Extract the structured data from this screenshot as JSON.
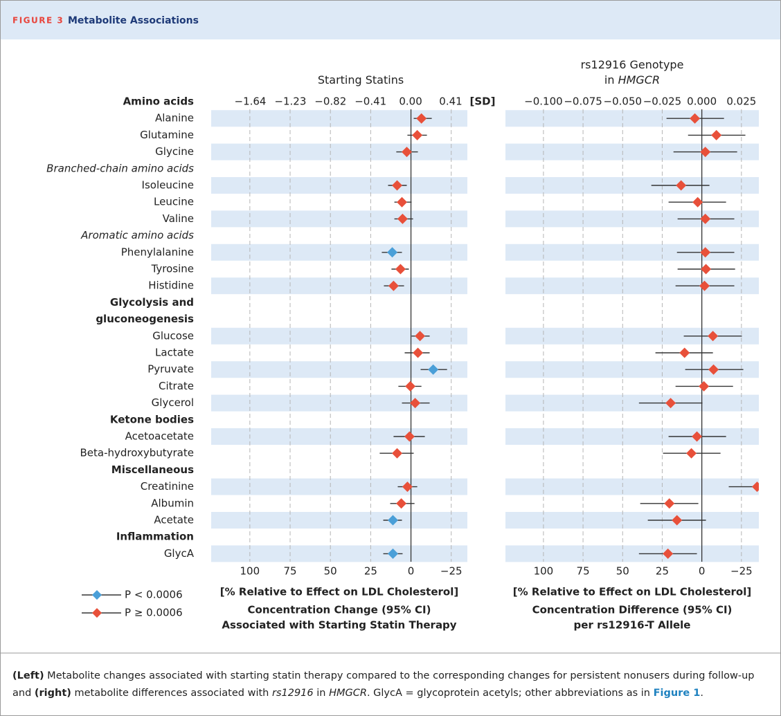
{
  "figure": {
    "label": "FIGURE 3",
    "title": "Metabolite Associations"
  },
  "rows": [
    {
      "label": "Amino acids",
      "style": "bold"
    },
    {
      "label": "Alanine",
      "style": "plain"
    },
    {
      "label": "Glutamine",
      "style": "plain"
    },
    {
      "label": "Glycine",
      "style": "plain"
    },
    {
      "label": "Branched-chain amino acids",
      "style": "italic"
    },
    {
      "label": "Isoleucine",
      "style": "plain"
    },
    {
      "label": "Leucine",
      "style": "plain"
    },
    {
      "label": "Valine",
      "style": "plain"
    },
    {
      "label": "Aromatic amino acids",
      "style": "italic"
    },
    {
      "label": "Phenylalanine",
      "style": "plain"
    },
    {
      "label": "Tyrosine",
      "style": "plain"
    },
    {
      "label": "Histidine",
      "style": "plain"
    },
    {
      "label": "Glycolysis and",
      "style": "bold"
    },
    {
      "label": "gluconeogenesis",
      "style": "bold"
    },
    {
      "label": "Glucose",
      "style": "plain"
    },
    {
      "label": "Lactate",
      "style": "plain"
    },
    {
      "label": "Pyruvate",
      "style": "plain"
    },
    {
      "label": "Citrate",
      "style": "plain"
    },
    {
      "label": "Glycerol",
      "style": "plain"
    },
    {
      "label": "Ketone bodies",
      "style": "bold"
    },
    {
      "label": "Acetoacetate",
      "style": "plain"
    },
    {
      "label": "Beta-hydroxybutyrate",
      "style": "plain"
    },
    {
      "label": "Miscellaneous",
      "style": "bold"
    },
    {
      "label": "Creatinine",
      "style": "plain"
    },
    {
      "label": "Albumin",
      "style": "plain"
    },
    {
      "label": "Acetate",
      "style": "plain"
    },
    {
      "label": "Inflammation",
      "style": "bold"
    },
    {
      "label": "GlycA",
      "style": "plain"
    }
  ],
  "chart_data": [
    {
      "type": "forest",
      "title": [
        [
          {
            "text": "Starting Statins"
          }
        ]
      ],
      "x2label": "[SD]",
      "xlabel": "[% Relative to Effect on LDL Cholesterol]",
      "xlabel_lines": [
        "Concentration Change (95% CI)",
        "Associated with Starting Statin Therapy"
      ],
      "xlim": [
        124,
        -35
      ],
      "xticks": [
        100,
        75,
        50,
        25,
        0,
        {
          "value": -25,
          "label": "−25"
        }
      ],
      "x2lim": [
        -2.04,
        0.58
      ],
      "x2ticks": [
        {
          "value": -1.64,
          "label": "−1.64"
        },
        {
          "value": -1.23,
          "label": "−1.23"
        },
        {
          "value": -0.82,
          "label": "−0.82"
        },
        {
          "value": -0.41,
          "label": "−0.41"
        },
        {
          "value": 0,
          "label": "0.00"
        },
        0.41
      ],
      "grid": true,
      "series": [
        {
          "name": "P < 0.0006",
          "color": "#4a9fd8",
          "values": [
            null,
            null,
            null,
            null,
            null,
            null,
            null,
            null,
            null,
            11.6,
            null,
            null,
            null,
            null,
            null,
            null,
            -13.8,
            null,
            null,
            null,
            null,
            null,
            null,
            null,
            null,
            11.2,
            null,
            11.2
          ]
        },
        {
          "name": "P ≥ 0.0006",
          "color": "#e8503a",
          "values": [
            null,
            -6.5,
            -3.9,
            2.6,
            null,
            8.6,
            5.6,
            5.2,
            null,
            null,
            6.5,
            10.8,
            null,
            null,
            -5.6,
            -4.3,
            null,
            0.4,
            -2.6,
            null,
            0.9,
            8.6,
            null,
            2.2,
            6.0,
            null,
            null,
            null
          ]
        }
      ],
      "ci_lower": [
        null,
        -12.9,
        -9.9,
        -4.3,
        null,
        2.6,
        -0.4,
        -1.3,
        null,
        5.6,
        1.3,
        4.3,
        null,
        null,
        -11.6,
        -11.6,
        -22.4,
        -6.5,
        -11.6,
        null,
        -8.6,
        -1.7,
        null,
        -3.9,
        -2.2,
        5.6,
        null,
        5.2
      ],
      "ci_upper": [
        null,
        -1.7,
        2.2,
        9.1,
        null,
        14.2,
        10.3,
        10.3,
        null,
        18.1,
        12.1,
        16.8,
        null,
        null,
        -0.4,
        3.9,
        -6.0,
        7.8,
        5.6,
        null,
        10.8,
        19.4,
        null,
        8.2,
        12.9,
        17.2,
        null,
        17.2
      ]
    },
    {
      "type": "forest",
      "title": [
        [
          {
            "text": "rs12916 Genotype"
          }
        ],
        [
          {
            "text": "in "
          },
          {
            "text": "HMGCR",
            "italic": true
          }
        ]
      ],
      "xlabel": "[% Relative to Effect on LDL Cholesterol]",
      "xlabel_lines": [
        "Concentration Difference (95% CI)",
        "per rs12916-T Allele"
      ],
      "xlim": [
        124,
        -36
      ],
      "xticks": [
        100,
        75,
        50,
        25,
        0,
        {
          "value": -25,
          "label": "−25"
        }
      ],
      "x2lim": [
        -0.124,
        0.036
      ],
      "x2ticks": [
        {
          "value": -0.1,
          "label": "−0.100"
        },
        {
          "value": -0.075,
          "label": "−0.075"
        },
        {
          "value": -0.05,
          "label": "−0.050"
        },
        {
          "value": -0.025,
          "label": "−0.025"
        },
        {
          "value": 0,
          "label": "0.000"
        },
        0.025
      ],
      "grid": true,
      "series": [
        {
          "color": "#e8503a",
          "values": [
            null,
            4.4,
            -9.2,
            -2.2,
            null,
            13.1,
            2.6,
            -2.2,
            null,
            -2.2,
            -2.6,
            -1.7,
            null,
            null,
            -7.0,
            10.9,
            -7.4,
            -1.3,
            19.7,
            null,
            3.1,
            6.6,
            null,
            -34.9,
            20.5,
            15.7,
            null,
            21.4
          ]
        }
      ],
      "ci_lower": [
        null,
        -14.0,
        -27.5,
        -22.3,
        null,
        -4.8,
        -15.3,
        -20.5,
        null,
        -20.5,
        -21.0,
        -20.5,
        null,
        null,
        -25.3,
        -7.0,
        -26.2,
        -19.7,
        -0.4,
        null,
        -15.3,
        -11.8,
        null,
        -53,
        2.2,
        -2.6,
        null,
        3.1
      ],
      "ci_upper": [
        null,
        22.3,
        8.7,
        17.9,
        null,
        31.9,
        21.0,
        15.3,
        null,
        15.7,
        15.3,
        16.6,
        null,
        null,
        11.4,
        29.3,
        10.5,
        16.6,
        39.7,
        null,
        21.0,
        24.5,
        null,
        -17.0,
        38.9,
        34.1,
        null,
        39.7
      ]
    }
  ],
  "caption": [
    {
      "text": "(Left)",
      "bold": true
    },
    {
      "text": " Metabolite changes associated with starting statin therapy compared to the corresponding changes for persistent nonusers during follow-up and "
    },
    {
      "text": "(right)",
      "bold": true
    },
    {
      "text": " metabolite differences associated with "
    },
    {
      "text": "rs12916",
      "italic": true
    },
    {
      "text": " in "
    },
    {
      "text": "HMGCR",
      "italic": true
    },
    {
      "text": ". GlycA = glycoprotein acetyls; other abbreviations as in "
    },
    {
      "text": "Figure 1",
      "bold": true,
      "link": true
    },
    {
      "text": "."
    }
  ]
}
